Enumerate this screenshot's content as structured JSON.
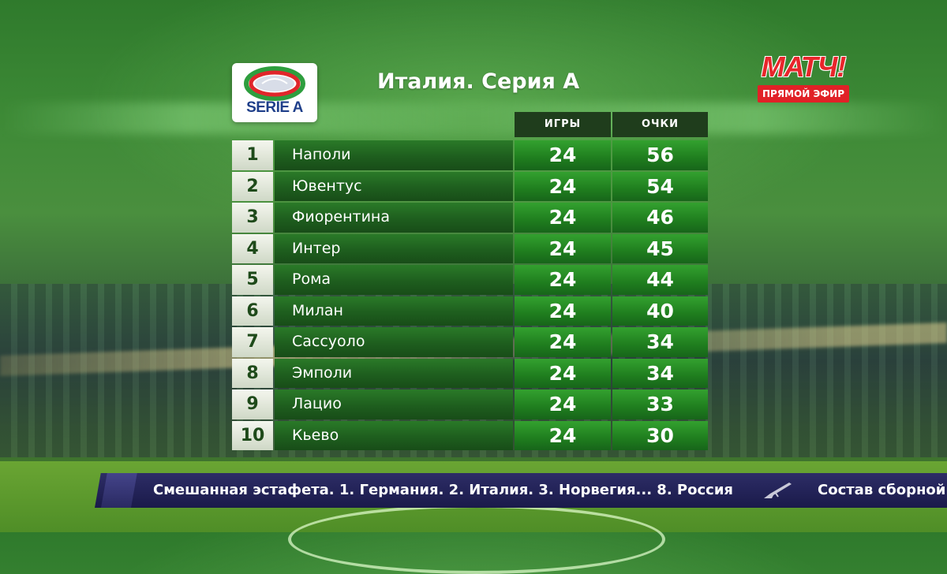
{
  "league": {
    "title": "Италия. Серия А",
    "logo_text": "SERIE A"
  },
  "broadcaster": {
    "name": "МАТЧ!",
    "live_label": "ПРЯМОЙ ЭФИР"
  },
  "table": {
    "headers": {
      "games": "ИГРЫ",
      "points": "ОЧКИ"
    },
    "rows": [
      {
        "pos": "1",
        "team": "Наполи",
        "games": "24",
        "points": "56"
      },
      {
        "pos": "2",
        "team": "Ювентус",
        "games": "24",
        "points": "54"
      },
      {
        "pos": "3",
        "team": "Фиорентина",
        "games": "24",
        "points": "46"
      },
      {
        "pos": "4",
        "team": "Интер",
        "games": "24",
        "points": "45"
      },
      {
        "pos": "5",
        "team": "Рома",
        "games": "24",
        "points": "44"
      },
      {
        "pos": "6",
        "team": "Милан",
        "games": "24",
        "points": "40"
      },
      {
        "pos": "7",
        "team": "Сассуоло",
        "games": "24",
        "points": "34"
      },
      {
        "pos": "8",
        "team": "Эмполи",
        "games": "24",
        "points": "34"
      },
      {
        "pos": "9",
        "team": "Лацио",
        "games": "24",
        "points": "33"
      },
      {
        "pos": "10",
        "team": "Кьево",
        "games": "24",
        "points": "30"
      }
    ]
  },
  "ticker": {
    "headline": "Смешанная эстафета. 1. Германия. 2. Италия. 3. Норвегия... 8. Россия",
    "next_headline": "Состав сборной",
    "icon": "rifle-icon"
  }
}
